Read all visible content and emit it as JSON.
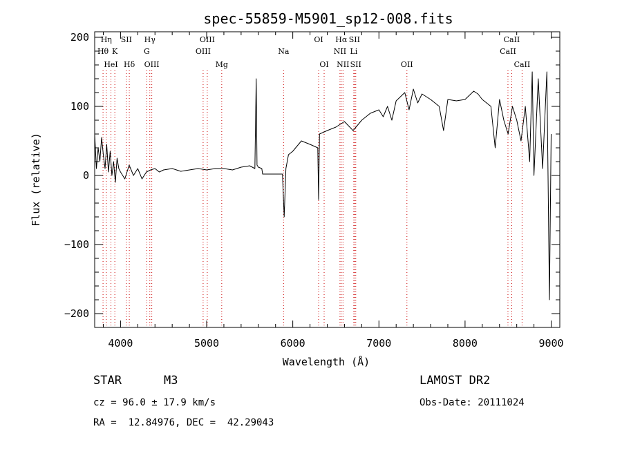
{
  "chart_data": {
    "type": "line",
    "title": "spec-55859-M5901_sp12-008.fits",
    "xlabel": "Wavelength (Å)",
    "ylabel": "Flux (relative)",
    "xlim": [
      3700,
      9100
    ],
    "ylim": [
      -220,
      208
    ],
    "xticks": [
      4000,
      5000,
      6000,
      7000,
      8000,
      9000
    ],
    "yticks": [
      -200,
      -100,
      0,
      100,
      200
    ],
    "grid": false,
    "line_color": "#000000",
    "marker_color": "#cc0000",
    "series": [
      {
        "x": [
          3700,
          3720,
          3740,
          3760,
          3780,
          3800,
          3820,
          3840,
          3860,
          3880,
          3900,
          3920,
          3940,
          3960,
          3980,
          4000,
          4050,
          4100,
          4150,
          4200,
          4250,
          4300,
          4350,
          4400,
          4450,
          4500,
          4600,
          4700,
          4800,
          4900,
          5000,
          5100,
          5200,
          5300,
          5400,
          5500,
          5560,
          5575,
          5585,
          5600,
          5640,
          5650,
          5700,
          5800,
          5880,
          5900,
          5920,
          5950,
          6000,
          6100,
          6200,
          6290,
          6300,
          6310,
          6400,
          6500,
          6600,
          6700,
          6800,
          6900,
          7000,
          7050,
          7100,
          7150,
          7200,
          7300,
          7350,
          7400,
          7450,
          7500,
          7600,
          7700,
          7750,
          7800,
          7900,
          8000,
          8100,
          8150,
          8200,
          8300,
          8350,
          8400,
          8450,
          8500,
          8550,
          8600,
          8650,
          8700,
          8750,
          8780,
          8800,
          8850,
          8900,
          8950,
          8980,
          9000
        ],
        "y": [
          60,
          10,
          40,
          20,
          55,
          30,
          10,
          45,
          5,
          35,
          0,
          20,
          -10,
          25,
          10,
          5,
          -5,
          15,
          0,
          10,
          -5,
          5,
          8,
          10,
          5,
          8,
          10,
          6,
          8,
          10,
          8,
          10,
          10,
          8,
          12,
          14,
          10,
          140,
          15,
          12,
          10,
          2,
          2,
          2,
          2,
          -60,
          10,
          30,
          35,
          50,
          45,
          40,
          -35,
          60,
          65,
          70,
          78,
          65,
          80,
          90,
          95,
          85,
          100,
          80,
          108,
          120,
          95,
          125,
          105,
          118,
          110,
          100,
          65,
          110,
          108,
          110,
          122,
          118,
          110,
          100,
          40,
          110,
          80,
          60,
          100,
          80,
          50,
          100,
          20,
          150,
          0,
          140,
          10,
          150,
          -180,
          60
        ]
      }
    ],
    "line_markers": [
      {
        "name": "Hη",
        "x": 3835,
        "row": 0
      },
      {
        "name": "Hθ",
        "x": 3797,
        "row": 1
      },
      {
        "name": "K",
        "x": 3934,
        "row": 1
      },
      {
        "name": "HeI",
        "x": 3889,
        "row": 2
      },
      {
        "name": "SII",
        "x": 4068,
        "row": 0
      },
      {
        "name": "Hδ",
        "x": 4102,
        "row": 2
      },
      {
        "name": "Hγ",
        "x": 4340,
        "row": 0
      },
      {
        "name": "G",
        "x": 4305,
        "row": 1
      },
      {
        "name": "OIII",
        "x": 4363,
        "row": 2
      },
      {
        "name": "OIII",
        "x": 5007,
        "row": 0
      },
      {
        "name": "OIII",
        "x": 4959,
        "row": 1
      },
      {
        "name": "Mg",
        "x": 5175,
        "row": 2
      },
      {
        "name": "Na",
        "x": 5893,
        "row": 1
      },
      {
        "name": "OI",
        "x": 6300,
        "row": 0
      },
      {
        "name": "OI",
        "x": 6364,
        "row": 2
      },
      {
        "name": "Hα",
        "x": 6563,
        "row": 0
      },
      {
        "name": "SII",
        "x": 6716,
        "row": 0
      },
      {
        "name": "NII",
        "x": 6548,
        "row": 1
      },
      {
        "name": "Li",
        "x": 6708,
        "row": 1
      },
      {
        "name": "NII",
        "x": 6583,
        "row": 2
      },
      {
        "name": "SII",
        "x": 6731,
        "row": 2
      },
      {
        "name": "OII",
        "x": 7325,
        "row": 2
      },
      {
        "name": "CaII",
        "x": 8542,
        "row": 0
      },
      {
        "name": "CaII",
        "x": 8498,
        "row": 1
      },
      {
        "name": "CaII",
        "x": 8662,
        "row": 2
      }
    ]
  },
  "info": {
    "object_class": "STAR",
    "subclass": "M3",
    "survey": "LAMOST DR2",
    "cz": "cz = 96.0 ± 17.9 km/s",
    "obs_date": "Obs-Date: 20111024",
    "coords": "RA =  12.84976, DEC =  42.29043"
  }
}
